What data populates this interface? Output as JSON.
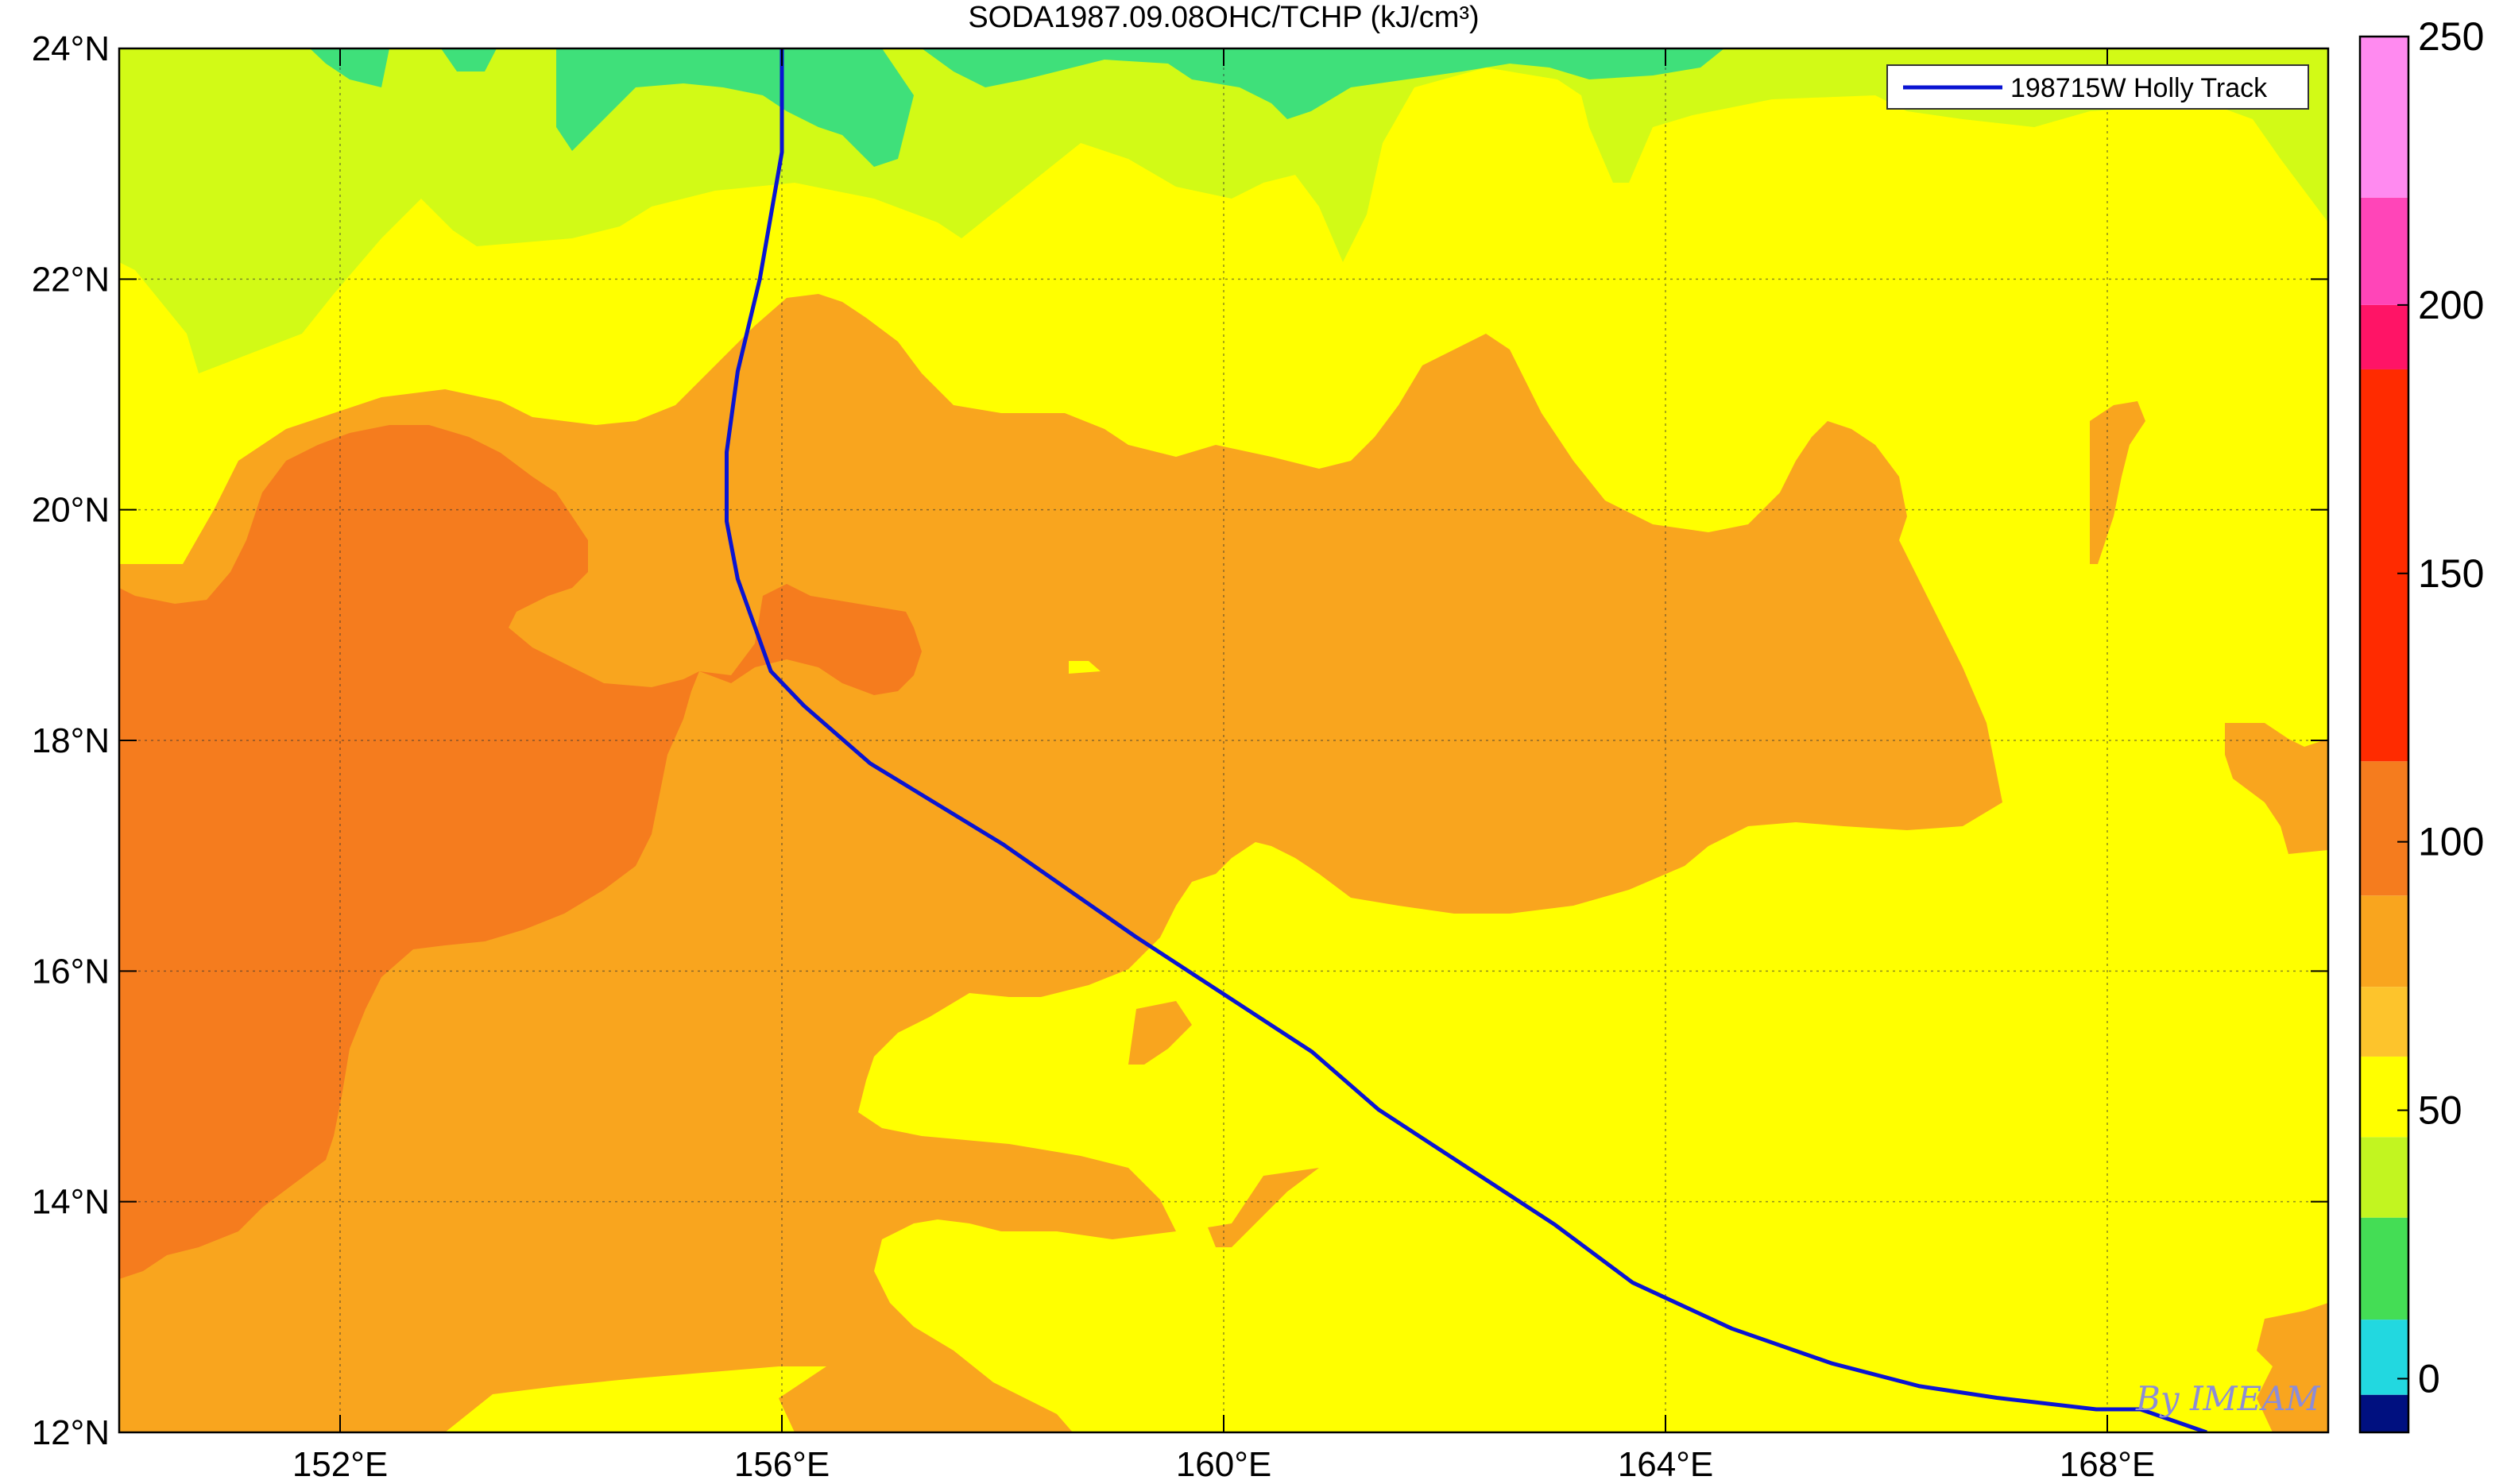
{
  "title": "SODA1987.09.08OHC/TCHP (kJ/cm³)",
  "legend": {
    "label": "198715W Holly Track",
    "color": "#0a14d2"
  },
  "watermark": "By IMEAM",
  "axes": {
    "lon_range": [
      150,
      170
    ],
    "lat_range": [
      12,
      24
    ],
    "x_ticks": [
      {
        "value": 152,
        "label": "152°E"
      },
      {
        "value": 156,
        "label": "156°E"
      },
      {
        "value": 160,
        "label": "160°E"
      },
      {
        "value": 164,
        "label": "164°E"
      },
      {
        "value": 168,
        "label": "168°E"
      }
    ],
    "y_ticks": [
      {
        "value": 12,
        "label": "12°N"
      },
      {
        "value": 14,
        "label": "14°N"
      },
      {
        "value": 16,
        "label": "16°N"
      },
      {
        "value": 18,
        "label": "18°N"
      },
      {
        "value": 20,
        "label": "20°N"
      },
      {
        "value": 22,
        "label": "22°N"
      },
      {
        "value": 24,
        "label": "24°N"
      }
    ],
    "grid": true
  },
  "colorbar": {
    "range": [
      -10,
      250
    ],
    "ticks": [
      {
        "value": 0,
        "label": "0"
      },
      {
        "value": 50,
        "label": "50"
      },
      {
        "value": 100,
        "label": "100"
      },
      {
        "value": 150,
        "label": "150"
      },
      {
        "value": 200,
        "label": "200"
      },
      {
        "value": 250,
        "label": "250"
      }
    ],
    "bands": [
      {
        "from": -10,
        "to": -3,
        "color": "#001080"
      },
      {
        "from": -3,
        "to": 11,
        "color": "#22d8e0"
      },
      {
        "from": 11,
        "to": 30,
        "color": "#44dd55"
      },
      {
        "from": 30,
        "to": 45,
        "color": "#c2f520"
      },
      {
        "from": 45,
        "to": 60,
        "color": "#ffff00"
      },
      {
        "from": 60,
        "to": 73,
        "color": "#fdc42c"
      },
      {
        "from": 73,
        "to": 90,
        "color": "#f9a51e"
      },
      {
        "from": 90,
        "to": 115,
        "color": "#f57c1e"
      },
      {
        "from": 115,
        "to": 188,
        "color": "#ff2b00"
      },
      {
        "from": 188,
        "to": 200,
        "color": "#ff1466"
      },
      {
        "from": 200,
        "to": 220,
        "color": "#ff45b8"
      },
      {
        "from": 220,
        "to": 250,
        "color": "#ff8af0"
      }
    ]
  },
  "fields": {
    "green": "#3fe07a",
    "lime": "#d2fa16",
    "yellow": "#ffff00",
    "orange": "#f9a51e",
    "dark_orange": "#f57c1e"
  },
  "track": [
    {
      "lon": 156.0,
      "lat": 24.0
    },
    {
      "lon": 156.0,
      "lat": 23.1
    },
    {
      "lon": 155.8,
      "lat": 22.0
    },
    {
      "lon": 155.6,
      "lat": 21.2
    },
    {
      "lon": 155.5,
      "lat": 20.5
    },
    {
      "lon": 155.5,
      "lat": 19.9
    },
    {
      "lon": 155.6,
      "lat": 19.4
    },
    {
      "lon": 155.9,
      "lat": 18.6
    },
    {
      "lon": 156.2,
      "lat": 18.3
    },
    {
      "lon": 156.8,
      "lat": 17.8
    },
    {
      "lon": 158.0,
      "lat": 17.1
    },
    {
      "lon": 159.2,
      "lat": 16.3
    },
    {
      "lon": 160.0,
      "lat": 15.8
    },
    {
      "lon": 160.8,
      "lat": 15.3
    },
    {
      "lon": 161.4,
      "lat": 14.8
    },
    {
      "lon": 163.0,
      "lat": 13.8
    },
    {
      "lon": 163.7,
      "lat": 13.3
    },
    {
      "lon": 164.6,
      "lat": 12.9
    },
    {
      "lon": 165.5,
      "lat": 12.6
    },
    {
      "lon": 166.3,
      "lat": 12.4
    },
    {
      "lon": 167.0,
      "lat": 12.3
    },
    {
      "lon": 167.9,
      "lat": 12.2
    },
    {
      "lon": 168.3,
      "lat": 12.2
    },
    {
      "lon": 168.6,
      "lat": 12.1
    },
    {
      "lon": 168.9,
      "lat": 12.0
    }
  ],
  "chart_data": {
    "type": "heatmap",
    "title": "SODA1987.09.08OHC/TCHP (kJ/cm³)",
    "xlabel": "",
    "ylabel": "",
    "xlim": [
      150,
      170
    ],
    "ylim": [
      12,
      24
    ],
    "colorbar_range": [
      -10,
      250
    ],
    "series": [
      {
        "name": "198715W Holly Track",
        "type": "line"
      }
    ]
  }
}
